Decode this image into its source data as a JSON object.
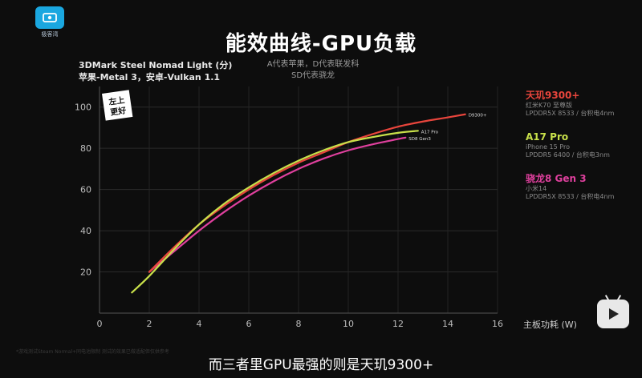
{
  "logo": {
    "label": "极客湾"
  },
  "title": "能效曲线-GPU负载",
  "benchmark": {
    "line1": "3DMark Steel Nomad Light (分)",
    "line2": "苹果-Metal 3，安卓-Vulkan 1.1"
  },
  "note": {
    "line1": "A代表苹果，D代表联发科",
    "line2": "SD代表骁龙"
  },
  "corner_badge": {
    "line1": "左上",
    "line2": "更好"
  },
  "legend": [
    {
      "name": "天玑9300+",
      "device": "红米K70 至尊版",
      "spec": "LPDDR5X 8533 / 台积电4nm",
      "color": "#e8453c"
    },
    {
      "name": "A17 Pro",
      "device": "iPhone 15 Pro",
      "spec": "LPDDR5 6400 / 台积电3nm",
      "color": "#c8e04a"
    },
    {
      "name": "骁龙8 Gen 3",
      "device": "小米14",
      "spec": "LPDDR5X 8533 / 台积电4nm",
      "color": "#e0409e"
    }
  ],
  "watermark": "*游戏测试Steam Normal+同电池限制  测试的效果已做适配但仅供参考",
  "subtitle": "而三者里GPU最强的则是天玑9300+",
  "chart_data": {
    "type": "line",
    "xlabel": "主板功耗 (W)",
    "ylabel": "",
    "xlim": [
      0,
      16
    ],
    "ylim": [
      0,
      110
    ],
    "x_ticks": [
      0,
      2,
      4,
      6,
      8,
      10,
      12,
      14,
      16
    ],
    "y_ticks": [
      20,
      40,
      60,
      80,
      100
    ],
    "grid": true,
    "series": [
      {
        "name": "D9300+",
        "color": "#e8453c",
        "points": [
          [
            2.0,
            20
          ],
          [
            3.0,
            32
          ],
          [
            4.0,
            43
          ],
          [
            5.0,
            52
          ],
          [
            6.0,
            60
          ],
          [
            7.0,
            67
          ],
          [
            8.0,
            73
          ],
          [
            9.0,
            78
          ],
          [
            10.0,
            83
          ],
          [
            11.0,
            87
          ],
          [
            12.0,
            90.5
          ],
          [
            13.0,
            93
          ],
          [
            14.0,
            95
          ],
          [
            14.7,
            96.5
          ]
        ]
      },
      {
        "name": "A17 Pro",
        "color": "#c8e04a",
        "points": [
          [
            1.3,
            10
          ],
          [
            2.0,
            18
          ],
          [
            3.0,
            31
          ],
          [
            4.0,
            43
          ],
          [
            5.0,
            53
          ],
          [
            6.0,
            61
          ],
          [
            7.0,
            68
          ],
          [
            8.0,
            74
          ],
          [
            9.0,
            79
          ],
          [
            10.0,
            83
          ],
          [
            11.0,
            85.5
          ],
          [
            12.0,
            87.5
          ],
          [
            12.8,
            88.5
          ]
        ]
      },
      {
        "name": "SD8 Gen3",
        "color": "#e0409e",
        "points": [
          [
            2.0,
            20
          ],
          [
            3.0,
            30
          ],
          [
            4.0,
            40
          ],
          [
            5.0,
            49
          ],
          [
            6.0,
            57
          ],
          [
            7.0,
            64
          ],
          [
            8.0,
            70
          ],
          [
            9.0,
            75
          ],
          [
            10.0,
            79
          ],
          [
            11.0,
            82
          ],
          [
            12.0,
            84.5
          ],
          [
            12.3,
            85.2
          ]
        ]
      }
    ]
  }
}
